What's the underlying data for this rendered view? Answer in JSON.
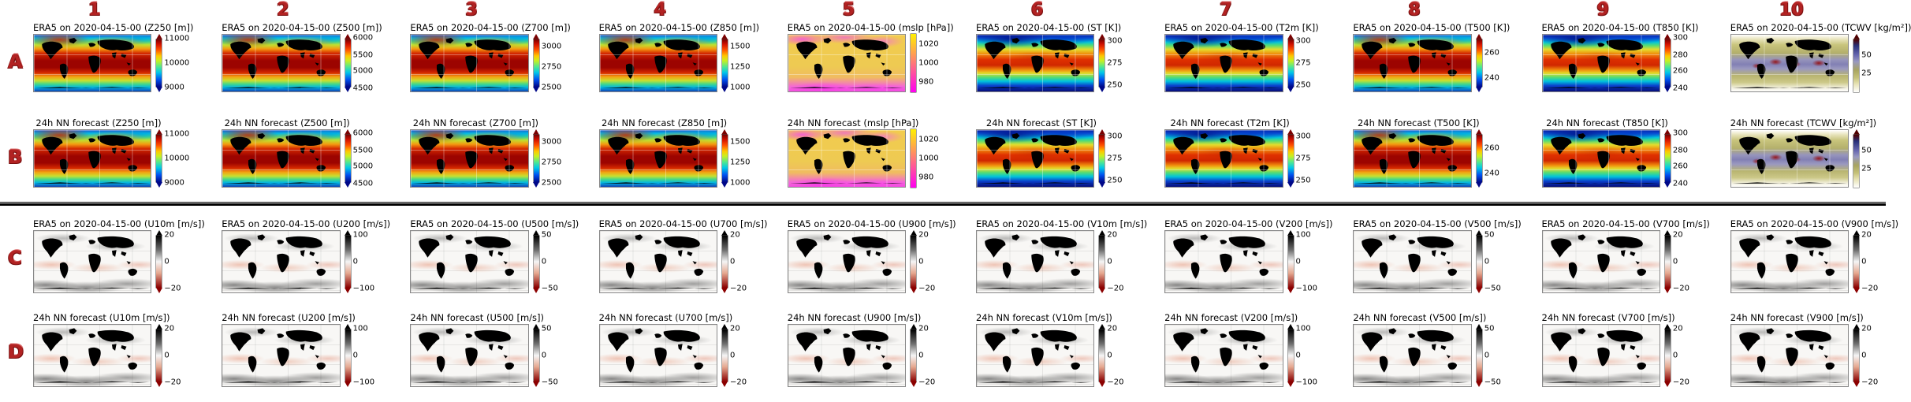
{
  "figure": {
    "column_headers": [
      "1",
      "2",
      "3",
      "4",
      "5",
      "6",
      "7",
      "8",
      "9",
      "10"
    ],
    "row_labels": [
      "A",
      "B",
      "C",
      "D"
    ],
    "divider_after_row": "B",
    "colors": {
      "label_red": "#b22222",
      "divider": "#000000",
      "background": "#ffffff"
    }
  },
  "chart_data": [
    {
      "type": "heatmap",
      "row": "A",
      "col": 1,
      "title": "ERA5 on 2020-04-15-00 (Z250 [m])",
      "variable": "Z250",
      "units": "m",
      "colormap": "jet",
      "map_style": "z",
      "colorbar_ticks": [
        "11000",
        "10000",
        "9000"
      ],
      "tick_pos": [
        8,
        50,
        92
      ],
      "arrows": "both"
    },
    {
      "type": "heatmap",
      "row": "A",
      "col": 2,
      "title": "ERA5 on 2020-04-15-00 (Z500 [m])",
      "variable": "Z500",
      "units": "m",
      "colormap": "jet",
      "map_style": "z",
      "colorbar_ticks": [
        "6000",
        "5500",
        "5000",
        "4500"
      ],
      "tick_pos": [
        7,
        36,
        64,
        93
      ],
      "arrows": "both"
    },
    {
      "type": "heatmap",
      "row": "A",
      "col": 3,
      "title": "ERA5 on 2020-04-15-00 (Z700 [m])",
      "variable": "Z700",
      "units": "m",
      "colormap": "jet",
      "map_style": "z",
      "colorbar_ticks": [
        "3000",
        "2750",
        "2500"
      ],
      "tick_pos": [
        22,
        57,
        92
      ],
      "arrows": "both"
    },
    {
      "type": "heatmap",
      "row": "A",
      "col": 4,
      "title": "ERA5 on 2020-04-15-00 (Z850 [m])",
      "variable": "Z850",
      "units": "m",
      "colormap": "jet",
      "map_style": "z",
      "colorbar_ticks": [
        "1500",
        "1250",
        "1000"
      ],
      "tick_pos": [
        22,
        57,
        92
      ],
      "arrows": "both"
    },
    {
      "type": "heatmap",
      "row": "A",
      "col": 5,
      "title": "ERA5 on 2020-04-15-00 (mslp [hPa])",
      "variable": "mslp",
      "units": "hPa",
      "colormap": "spring",
      "map_style": "mslp",
      "colorbar_ticks": [
        "1020",
        "1000",
        "980"
      ],
      "tick_pos": [
        18,
        50,
        82
      ],
      "arrows": "none"
    },
    {
      "type": "heatmap",
      "row": "A",
      "col": 6,
      "title": "ERA5 on 2020-04-15-00 (ST [K])",
      "variable": "ST",
      "units": "K",
      "colormap": "jet",
      "map_style": "t",
      "colorbar_ticks": [
        "300",
        "275",
        "250"
      ],
      "tick_pos": [
        12,
        50,
        88
      ],
      "arrows": "both"
    },
    {
      "type": "heatmap",
      "row": "A",
      "col": 7,
      "title": "ERA5 on 2020-04-15-00 (T2m [K])",
      "variable": "T2m",
      "units": "K",
      "colormap": "jet",
      "map_style": "t",
      "colorbar_ticks": [
        "300",
        "275",
        "250"
      ],
      "tick_pos": [
        12,
        50,
        88
      ],
      "arrows": "both"
    },
    {
      "type": "heatmap",
      "row": "A",
      "col": 8,
      "title": "ERA5 on 2020-04-15-00 (T500 [K])",
      "variable": "T500",
      "units": "K",
      "colormap": "jet",
      "map_style": "z",
      "colorbar_ticks": [
        "260",
        "240"
      ],
      "tick_pos": [
        32,
        76
      ],
      "arrows": "both"
    },
    {
      "type": "heatmap",
      "row": "A",
      "col": 9,
      "title": "ERA5 on 2020-04-15-00 (T850 [K])",
      "variable": "T850",
      "units": "K",
      "colormap": "jet",
      "map_style": "t",
      "colorbar_ticks": [
        "300",
        "280",
        "260",
        "240"
      ],
      "tick_pos": [
        7,
        36,
        64,
        93
      ],
      "arrows": "both"
    },
    {
      "type": "heatmap",
      "row": "A",
      "col": 10,
      "title": "ERA5 on 2020-04-15-00 (TCWV [kg/m²])",
      "variable": "TCWV",
      "units": "kg/m²",
      "colormap": "tcwv",
      "map_style": "tcwv",
      "colorbar_ticks": [
        "50",
        "25"
      ],
      "tick_pos": [
        36,
        68
      ],
      "arrows": "top"
    },
    {
      "type": "heatmap",
      "row": "B",
      "col": 1,
      "title": "24h NN forecast (Z250 [m])",
      "variable": "Z250",
      "units": "m",
      "colormap": "jet",
      "map_style": "z",
      "colorbar_ticks": [
        "11000",
        "10000",
        "9000"
      ],
      "tick_pos": [
        8,
        50,
        92
      ],
      "arrows": "both"
    },
    {
      "type": "heatmap",
      "row": "B",
      "col": 2,
      "title": "24h NN forecast (Z500 [m])",
      "variable": "Z500",
      "units": "m",
      "colormap": "jet",
      "map_style": "z",
      "colorbar_ticks": [
        "6000",
        "5500",
        "5000",
        "4500"
      ],
      "tick_pos": [
        7,
        36,
        64,
        93
      ],
      "arrows": "both"
    },
    {
      "type": "heatmap",
      "row": "B",
      "col": 3,
      "title": "24h NN forecast (Z700 [m])",
      "variable": "Z700",
      "units": "m",
      "colormap": "jet",
      "map_style": "z",
      "colorbar_ticks": [
        "3000",
        "2750",
        "2500"
      ],
      "tick_pos": [
        22,
        57,
        92
      ],
      "arrows": "both"
    },
    {
      "type": "heatmap",
      "row": "B",
      "col": 4,
      "title": "24h NN forecast (Z850 [m])",
      "variable": "Z850",
      "units": "m",
      "colormap": "jet",
      "map_style": "z",
      "colorbar_ticks": [
        "1500",
        "1250",
        "1000"
      ],
      "tick_pos": [
        22,
        57,
        92
      ],
      "arrows": "both"
    },
    {
      "type": "heatmap",
      "row": "B",
      "col": 5,
      "title": "24h NN forecast (mslp [hPa])",
      "variable": "mslp",
      "units": "hPa",
      "colormap": "spring",
      "map_style": "mslp",
      "colorbar_ticks": [
        "1020",
        "1000",
        "980"
      ],
      "tick_pos": [
        18,
        50,
        82
      ],
      "arrows": "none"
    },
    {
      "type": "heatmap",
      "row": "B",
      "col": 6,
      "title": "24h NN forecast (ST [K])",
      "variable": "ST",
      "units": "K",
      "colormap": "jet",
      "map_style": "t",
      "colorbar_ticks": [
        "300",
        "275",
        "250"
      ],
      "tick_pos": [
        12,
        50,
        88
      ],
      "arrows": "both"
    },
    {
      "type": "heatmap",
      "row": "B",
      "col": 7,
      "title": "24h NN forecast (T2m [K])",
      "variable": "T2m",
      "units": "K",
      "colormap": "jet",
      "map_style": "t",
      "colorbar_ticks": [
        "300",
        "275",
        "250"
      ],
      "tick_pos": [
        12,
        50,
        88
      ],
      "arrows": "both"
    },
    {
      "type": "heatmap",
      "row": "B",
      "col": 8,
      "title": "24h NN forecast (T500 [K])",
      "variable": "T500",
      "units": "K",
      "colormap": "jet",
      "map_style": "z",
      "colorbar_ticks": [
        "260",
        "240"
      ],
      "tick_pos": [
        32,
        76
      ],
      "arrows": "both"
    },
    {
      "type": "heatmap",
      "row": "B",
      "col": 9,
      "title": "24h NN forecast (T850 [K])",
      "variable": "T850",
      "units": "K",
      "colormap": "jet",
      "map_style": "t",
      "colorbar_ticks": [
        "300",
        "280",
        "260",
        "240"
      ],
      "tick_pos": [
        7,
        36,
        64,
        93
      ],
      "arrows": "both"
    },
    {
      "type": "heatmap",
      "row": "B",
      "col": 10,
      "title": "24h NN forecast (TCWV [kg/m²])",
      "variable": "TCWV",
      "units": "kg/m²",
      "colormap": "tcwv",
      "map_style": "tcwv",
      "colorbar_ticks": [
        "50",
        "25"
      ],
      "tick_pos": [
        36,
        68
      ],
      "arrows": "top"
    },
    {
      "type": "heatmap",
      "row": "C",
      "col": 1,
      "title": "ERA5 on 2020-04-15-00 (U10m [m/s])",
      "variable": "U10m",
      "units": "m/s",
      "colormap": "rdgy",
      "map_style": "wind",
      "colorbar_ticks": [
        "20",
        "0",
        "−20"
      ],
      "tick_pos": [
        7,
        50,
        93
      ],
      "arrows": "both"
    },
    {
      "type": "heatmap",
      "row": "C",
      "col": 2,
      "title": "ERA5 on 2020-04-15-00 (U200 [m/s])",
      "variable": "U200",
      "units": "m/s",
      "colormap": "rdgy",
      "map_style": "wind",
      "colorbar_ticks": [
        "100",
        "0",
        "−100"
      ],
      "tick_pos": [
        7,
        50,
        93
      ],
      "arrows": "both"
    },
    {
      "type": "heatmap",
      "row": "C",
      "col": 3,
      "title": "ERA5 on 2020-04-15-00 (U500 [m/s])",
      "variable": "U500",
      "units": "m/s",
      "colormap": "rdgy",
      "map_style": "wind",
      "colorbar_ticks": [
        "50",
        "0",
        "−50"
      ],
      "tick_pos": [
        7,
        50,
        93
      ],
      "arrows": "both"
    },
    {
      "type": "heatmap",
      "row": "C",
      "col": 4,
      "title": "ERA5 on 2020-04-15-00 (U700 [m/s])",
      "variable": "U700",
      "units": "m/s",
      "colormap": "rdgy",
      "map_style": "wind",
      "colorbar_ticks": [
        "20",
        "0",
        "−20"
      ],
      "tick_pos": [
        7,
        50,
        93
      ],
      "arrows": "both"
    },
    {
      "type": "heatmap",
      "row": "C",
      "col": 5,
      "title": "ERA5 on 2020-04-15-00 (U900 [m/s])",
      "variable": "U900",
      "units": "m/s",
      "colormap": "rdgy",
      "map_style": "wind",
      "colorbar_ticks": [
        "20",
        "0",
        "−20"
      ],
      "tick_pos": [
        7,
        50,
        93
      ],
      "arrows": "both"
    },
    {
      "type": "heatmap",
      "row": "C",
      "col": 6,
      "title": "ERA5 on 2020-04-15-00 (V10m [m/s])",
      "variable": "V10m",
      "units": "m/s",
      "colormap": "rdgy",
      "map_style": "wind",
      "colorbar_ticks": [
        "20",
        "0",
        "−20"
      ],
      "tick_pos": [
        7,
        50,
        93
      ],
      "arrows": "both"
    },
    {
      "type": "heatmap",
      "row": "C",
      "col": 7,
      "title": "ERA5 on 2020-04-15-00 (V200 [m/s])",
      "variable": "V200",
      "units": "m/s",
      "colormap": "rdgy",
      "map_style": "wind",
      "colorbar_ticks": [
        "100",
        "0",
        "−100"
      ],
      "tick_pos": [
        7,
        50,
        93
      ],
      "arrows": "both"
    },
    {
      "type": "heatmap",
      "row": "C",
      "col": 8,
      "title": "ERA5 on 2020-04-15-00 (V500 [m/s])",
      "variable": "V500",
      "units": "m/s",
      "colormap": "rdgy",
      "map_style": "wind",
      "colorbar_ticks": [
        "50",
        "0",
        "−50"
      ],
      "tick_pos": [
        7,
        50,
        93
      ],
      "arrows": "both"
    },
    {
      "type": "heatmap",
      "row": "C",
      "col": 9,
      "title": "ERA5 on 2020-04-15-00 (V700 [m/s])",
      "variable": "V700",
      "units": "m/s",
      "colormap": "rdgy",
      "map_style": "wind",
      "colorbar_ticks": [
        "20",
        "0",
        "−20"
      ],
      "tick_pos": [
        7,
        50,
        93
      ],
      "arrows": "both"
    },
    {
      "type": "heatmap",
      "row": "C",
      "col": 10,
      "title": "ERA5 on 2020-04-15-00 (V900 [m/s])",
      "variable": "V900",
      "units": "m/s",
      "colormap": "rdgy",
      "map_style": "wind",
      "colorbar_ticks": [
        "20",
        "0",
        "−20"
      ],
      "tick_pos": [
        7,
        50,
        93
      ],
      "arrows": "both"
    },
    {
      "type": "heatmap",
      "row": "D",
      "col": 1,
      "title": "24h NN forecast (U10m [m/s])",
      "variable": "U10m",
      "units": "m/s",
      "colormap": "rdgy",
      "map_style": "wind",
      "colorbar_ticks": [
        "20",
        "0",
        "−20"
      ],
      "tick_pos": [
        7,
        50,
        93
      ],
      "arrows": "both"
    },
    {
      "type": "heatmap",
      "row": "D",
      "col": 2,
      "title": "24h NN forecast (U200 [m/s])",
      "variable": "U200",
      "units": "m/s",
      "colormap": "rdgy",
      "map_style": "wind",
      "colorbar_ticks": [
        "100",
        "0",
        "−100"
      ],
      "tick_pos": [
        7,
        50,
        93
      ],
      "arrows": "both"
    },
    {
      "type": "heatmap",
      "row": "D",
      "col": 3,
      "title": "24h NN forecast (U500 [m/s])",
      "variable": "U500",
      "units": "m/s",
      "colormap": "rdgy",
      "map_style": "wind",
      "colorbar_ticks": [
        "50",
        "0",
        "−50"
      ],
      "tick_pos": [
        7,
        50,
        93
      ],
      "arrows": "both"
    },
    {
      "type": "heatmap",
      "row": "D",
      "col": 4,
      "title": "24h NN forecast (U700 [m/s])",
      "variable": "U700",
      "units": "m/s",
      "colormap": "rdgy",
      "map_style": "wind",
      "colorbar_ticks": [
        "20",
        "0",
        "−20"
      ],
      "tick_pos": [
        7,
        50,
        93
      ],
      "arrows": "both"
    },
    {
      "type": "heatmap",
      "row": "D",
      "col": 5,
      "title": "24h NN forecast (U900 [m/s])",
      "variable": "U900",
      "units": "m/s",
      "colormap": "rdgy",
      "map_style": "wind",
      "colorbar_ticks": [
        "20",
        "0",
        "−20"
      ],
      "tick_pos": [
        7,
        50,
        93
      ],
      "arrows": "both"
    },
    {
      "type": "heatmap",
      "row": "D",
      "col": 6,
      "title": "24h NN forecast (V10m [m/s])",
      "variable": "V10m",
      "units": "m/s",
      "colormap": "rdgy",
      "map_style": "wind",
      "colorbar_ticks": [
        "20",
        "0",
        "−20"
      ],
      "tick_pos": [
        7,
        50,
        93
      ],
      "arrows": "both"
    },
    {
      "type": "heatmap",
      "row": "D",
      "col": 7,
      "title": "24h NN forecast (V200 [m/s])",
      "variable": "V200",
      "units": "m/s",
      "colormap": "rdgy",
      "map_style": "wind",
      "colorbar_ticks": [
        "100",
        "0",
        "−100"
      ],
      "tick_pos": [
        7,
        50,
        93
      ],
      "arrows": "both"
    },
    {
      "type": "heatmap",
      "row": "D",
      "col": 8,
      "title": "24h NN forecast (V500 [m/s])",
      "variable": "V500",
      "units": "m/s",
      "colormap": "rdgy",
      "map_style": "wind",
      "colorbar_ticks": [
        "50",
        "0",
        "−50"
      ],
      "tick_pos": [
        7,
        50,
        93
      ],
      "arrows": "both"
    },
    {
      "type": "heatmap",
      "row": "D",
      "col": 9,
      "title": "24h NN forecast (V700 [m/s])",
      "variable": "V700",
      "units": "m/s",
      "colormap": "rdgy",
      "map_style": "wind",
      "colorbar_ticks": [
        "20",
        "0",
        "−20"
      ],
      "tick_pos": [
        7,
        50,
        93
      ],
      "arrows": "both"
    },
    {
      "type": "heatmap",
      "row": "D",
      "col": 10,
      "title": "24h NN forecast (V900 [m/s])",
      "variable": "V900",
      "units": "m/s",
      "colormap": "rdgy",
      "map_style": "wind",
      "colorbar_ticks": [
        "20",
        "0",
        "−20"
      ],
      "tick_pos": [
        7,
        50,
        93
      ],
      "arrows": "both"
    }
  ]
}
